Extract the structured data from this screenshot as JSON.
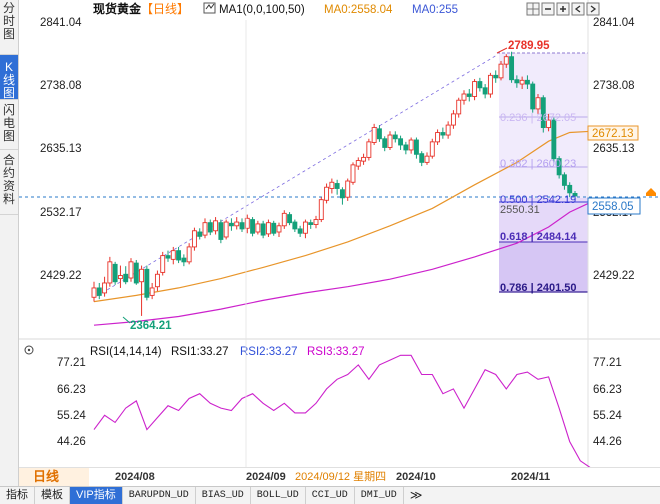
{
  "left_tabs": [
    {
      "label": [
        "分",
        "时",
        "图"
      ],
      "active": false
    },
    {
      "label": [
        "K",
        "线",
        "图"
      ],
      "active": true
    },
    {
      "label": [
        "闪",
        "电",
        "图"
      ],
      "active": false
    },
    {
      "label": [
        "合",
        "约",
        "资",
        "料"
      ],
      "active": false
    }
  ],
  "header": {
    "instrument": "现货黄金",
    "period_tag": "【日线】",
    "ma1_label": "MA1(0,0,100,50)",
    "ma0_label": "MA0:2558.04",
    "ma0b_label": "MA0:255",
    "colors": {
      "instrument": "#111111",
      "period": "#ff7a00",
      "ma1": "#111111",
      "ma0": "#e08a00",
      "ma0b": "#3b57d6"
    }
  },
  "price_axis": [
    "2841.04",
    "2738.08",
    "2635.13",
    "2532.17",
    "2429.22"
  ],
  "chart_annotations": {
    "high_label": "2789.95",
    "low_label": "2364.21",
    "ma_price_tag": "2672.13",
    "current_price_tag": "2558.05",
    "under_fib_label": "2550.31"
  },
  "fib_levels": [
    {
      "label": "0.236 | 2672.05",
      "ratio": "0.236",
      "price": 2672.05
    },
    {
      "label": "0.382 | 2600.23",
      "ratio": "0.382",
      "price": 2600.23
    },
    {
      "label": "0.500 | 2542.19",
      "ratio": "0.500",
      "price": 2542.19
    },
    {
      "label": "0.618 | 2484.14",
      "ratio": "0.618",
      "price": 2484.14
    },
    {
      "label": "0.786 | 2401.50",
      "ratio": "0.786",
      "price": 2401.5
    }
  ],
  "rsi": {
    "header_label": "RSI(14,14,14)",
    "rsi1_label": "RSI1:33.27",
    "rsi2_label": "RSI2:33.27",
    "rsi3_label": "RSI3:33.27",
    "axis": [
      "77.21",
      "66.23",
      "55.24",
      "44.26"
    ],
    "colors": {
      "rsi1": "#111111",
      "rsi2": "#2f4fd8",
      "rsi3": "#cc00cc"
    }
  },
  "x_axis": {
    "period_label": "日线",
    "labels": [
      "2024/08",
      "2024/09",
      "2024/10",
      "2024/11"
    ],
    "hover_date": "2024/09/12 星期四"
  },
  "bottom_tabs": [
    {
      "label": "指标",
      "active": false,
      "mono": false
    },
    {
      "label": "模板",
      "active": false,
      "mono": false
    },
    {
      "label": "VIP指标",
      "active": true,
      "mono": false
    },
    {
      "label": "BARUPDN_UD",
      "active": false,
      "mono": true
    },
    {
      "label": "BIAS_UD",
      "active": false,
      "mono": true
    },
    {
      "label": "BOLL_UD",
      "active": false,
      "mono": true
    },
    {
      "label": "CCI_UD",
      "active": false,
      "mono": true
    },
    {
      "label": "DMI_UD",
      "active": false,
      "mono": true
    }
  ],
  "more_tabs_icon": "double-chevron-right-icon",
  "more_tabs_glyph": "≫",
  "colors": {
    "up_candle": "#e8332a",
    "down_candle": "#14a07a",
    "ma_orange": "#e8952a",
    "ma_magenta": "#cc22cc",
    "rsi_line": "#cc22cc",
    "fib_fill": "#e9defa",
    "accent_blue": "#2f6fd6"
  },
  "chart_data": {
    "type": "candlestick",
    "price_ylim": [
      2340,
      2850
    ],
    "candles": [
      [
        2395,
        2410,
        2388,
        2420
      ],
      [
        2410,
        2398,
        2392,
        2418
      ],
      [
        2402,
        2418,
        2396,
        2428
      ],
      [
        2418,
        2452,
        2412,
        2460
      ],
      [
        2448,
        2420,
        2415,
        2452
      ],
      [
        2425,
        2430,
        2410,
        2446
      ],
      [
        2432,
        2420,
        2416,
        2445
      ],
      [
        2426,
        2452,
        2420,
        2458
      ],
      [
        2450,
        2418,
        2415,
        2455
      ],
      [
        2420,
        2440,
        2365,
        2446
      ],
      [
        2440,
        2395,
        2390,
        2446
      ],
      [
        2398,
        2410,
        2392,
        2418
      ],
      [
        2412,
        2432,
        2405,
        2438
      ],
      [
        2435,
        2462,
        2430,
        2468
      ],
      [
        2462,
        2458,
        2452,
        2470
      ],
      [
        2456,
        2470,
        2448,
        2476
      ],
      [
        2470,
        2455,
        2450,
        2476
      ],
      [
        2458,
        2452,
        2445,
        2464
      ],
      [
        2452,
        2476,
        2448,
        2482
      ],
      [
        2476,
        2502,
        2470,
        2507
      ],
      [
        2500,
        2493,
        2488,
        2506
      ],
      [
        2495,
        2515,
        2490,
        2522
      ],
      [
        2515,
        2500,
        2495,
        2520
      ],
      [
        2502,
        2518,
        2496,
        2524
      ],
      [
        2515,
        2488,
        2482,
        2520
      ],
      [
        2492,
        2516,
        2488,
        2520
      ],
      [
        2514,
        2510,
        2502,
        2522
      ],
      [
        2510,
        2516,
        2504,
        2524
      ],
      [
        2515,
        2505,
        2500,
        2522
      ],
      [
        2506,
        2522,
        2498,
        2528
      ],
      [
        2520,
        2498,
        2493,
        2524
      ],
      [
        2500,
        2513,
        2496,
        2518
      ],
      [
        2513,
        2495,
        2490,
        2518
      ],
      [
        2497,
        2515,
        2492,
        2520
      ],
      [
        2514,
        2498,
        2494,
        2518
      ],
      [
        2500,
        2510,
        2492,
        2515
      ],
      [
        2510,
        2530,
        2505,
        2535
      ],
      [
        2528,
        2515,
        2511,
        2532
      ],
      [
        2516,
        2505,
        2500,
        2520
      ],
      [
        2505,
        2498,
        2492,
        2510
      ],
      [
        2498,
        2516,
        2490,
        2520
      ],
      [
        2515,
        2512,
        2505,
        2520
      ],
      [
        2512,
        2520,
        2506,
        2526
      ],
      [
        2520,
        2552,
        2516,
        2556
      ],
      [
        2551,
        2572,
        2546,
        2578
      ],
      [
        2570,
        2580,
        2562,
        2586
      ],
      [
        2578,
        2570,
        2560,
        2584
      ],
      [
        2568,
        2555,
        2544,
        2572
      ],
      [
        2556,
        2582,
        2550,
        2586
      ],
      [
        2580,
        2608,
        2576,
        2612
      ],
      [
        2606,
        2615,
        2600,
        2620
      ],
      [
        2614,
        2620,
        2608,
        2626
      ],
      [
        2620,
        2645,
        2615,
        2650
      ],
      [
        2644,
        2668,
        2640,
        2674
      ],
      [
        2666,
        2650,
        2645,
        2672
      ],
      [
        2650,
        2636,
        2630,
        2654
      ],
      [
        2636,
        2656,
        2632,
        2662
      ],
      [
        2656,
        2650,
        2644,
        2662
      ],
      [
        2650,
        2640,
        2632,
        2655
      ],
      [
        2640,
        2632,
        2625,
        2645
      ],
      [
        2632,
        2648,
        2626,
        2652
      ],
      [
        2648,
        2625,
        2618,
        2652
      ],
      [
        2626,
        2612,
        2606,
        2630
      ],
      [
        2612,
        2622,
        2608,
        2628
      ],
      [
        2622,
        2645,
        2618,
        2650
      ],
      [
        2645,
        2660,
        2640,
        2665
      ],
      [
        2660,
        2656,
        2650,
        2668
      ],
      [
        2656,
        2672,
        2650,
        2678
      ],
      [
        2672,
        2690,
        2666,
        2696
      ],
      [
        2690,
        2712,
        2684,
        2716
      ],
      [
        2712,
        2722,
        2705,
        2728
      ],
      [
        2722,
        2718,
        2710,
        2730
      ],
      [
        2718,
        2742,
        2712,
        2746
      ],
      [
        2742,
        2732,
        2726,
        2748
      ],
      [
        2732,
        2722,
        2715,
        2738
      ],
      [
        2722,
        2752,
        2716,
        2756
      ],
      [
        2752,
        2748,
        2740,
        2760
      ],
      [
        2748,
        2770,
        2744,
        2775
      ],
      [
        2770,
        2782,
        2764,
        2786
      ],
      [
        2782,
        2745,
        2740,
        2790
      ],
      [
        2745,
        2740,
        2732,
        2752
      ],
      [
        2738,
        2744,
        2730,
        2750
      ],
      [
        2744,
        2738,
        2730,
        2752
      ],
      [
        2738,
        2698,
        2692,
        2742
      ],
      [
        2698,
        2716,
        2690,
        2722
      ],
      [
        2716,
        2668,
        2660,
        2720
      ],
      [
        2668,
        2680,
        2662,
        2690
      ],
      [
        2680,
        2618,
        2612,
        2684
      ],
      [
        2618,
        2592,
        2586,
        2622
      ],
      [
        2592,
        2575,
        2568,
        2596
      ],
      [
        2575,
        2563,
        2556,
        2580
      ],
      [
        2562,
        2558,
        2550,
        2566
      ]
    ],
    "ma_orange": [
      [
        0,
        2388
      ],
      [
        8,
        2398
      ],
      [
        16,
        2410
      ],
      [
        24,
        2425
      ],
      [
        32,
        2443
      ],
      [
        40,
        2462
      ],
      [
        48,
        2484
      ],
      [
        56,
        2510
      ],
      [
        64,
        2538
      ],
      [
        72,
        2576
      ],
      [
        80,
        2612
      ],
      [
        86,
        2646
      ],
      [
        90,
        2660
      ],
      [
        94,
        2662
      ]
    ],
    "ma_magenta": [
      [
        0,
        2350
      ],
      [
        8,
        2356
      ],
      [
        16,
        2364
      ],
      [
        24,
        2376
      ],
      [
        32,
        2390
      ],
      [
        40,
        2402
      ],
      [
        48,
        2412
      ],
      [
        56,
        2424
      ],
      [
        64,
        2440
      ],
      [
        72,
        2460
      ],
      [
        80,
        2482
      ],
      [
        86,
        2508
      ],
      [
        90,
        2532
      ],
      [
        94,
        2548
      ]
    ],
    "rsi_values": [
      [
        0,
        49
      ],
      [
        2,
        55
      ],
      [
        4,
        52
      ],
      [
        6,
        58
      ],
      [
        8,
        61
      ],
      [
        10,
        49
      ],
      [
        12,
        54
      ],
      [
        14,
        59
      ],
      [
        16,
        57
      ],
      [
        18,
        62
      ],
      [
        20,
        64
      ],
      [
        22,
        60
      ],
      [
        24,
        58
      ],
      [
        26,
        57
      ],
      [
        28,
        62
      ],
      [
        30,
        64
      ],
      [
        32,
        60
      ],
      [
        34,
        57
      ],
      [
        36,
        60
      ],
      [
        38,
        56
      ],
      [
        40,
        56
      ],
      [
        42,
        60
      ],
      [
        44,
        66
      ],
      [
        46,
        70
      ],
      [
        48,
        72
      ],
      [
        50,
        76
      ],
      [
        52,
        70
      ],
      [
        54,
        76
      ],
      [
        56,
        78
      ],
      [
        58,
        80
      ],
      [
        60,
        80
      ],
      [
        62,
        72
      ],
      [
        64,
        72
      ],
      [
        66,
        64
      ],
      [
        68,
        66
      ],
      [
        70,
        58
      ],
      [
        72,
        66
      ],
      [
        74,
        74
      ],
      [
        76,
        72
      ],
      [
        78,
        66
      ],
      [
        80,
        72
      ],
      [
        82,
        73
      ],
      [
        84,
        70
      ],
      [
        86,
        71
      ],
      [
        88,
        58
      ],
      [
        90,
        44
      ],
      [
        92,
        36
      ],
      [
        94,
        33
      ]
    ],
    "rsi_ylim": [
      30,
      82
    ]
  }
}
